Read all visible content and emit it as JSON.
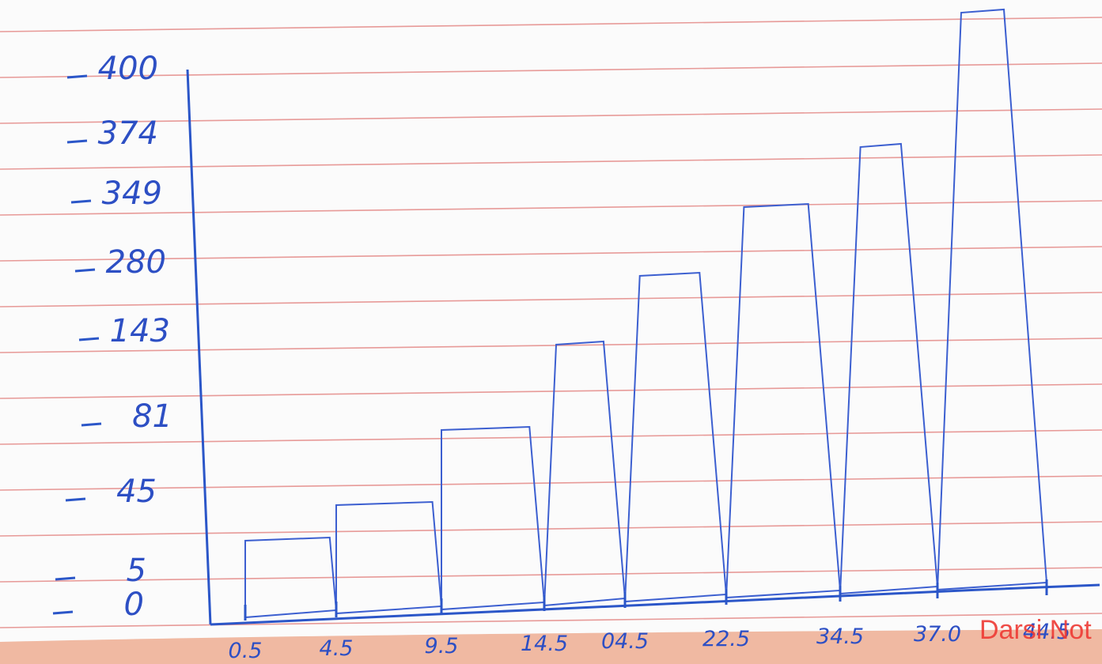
{
  "chart_data": {
    "type": "bar",
    "title": "",
    "xlabel": "",
    "ylabel": "",
    "y_tick_labels": [
      "0",
      "5",
      "45",
      "81",
      "143",
      "280",
      "349",
      "374",
      "400"
    ],
    "x_tick_labels": [
      "0.5",
      "4.5",
      "9.5",
      "14.5",
      "04.5",
      "22.5",
      "34.5",
      "37.0",
      "44.5"
    ],
    "bars": [
      {
        "from": "0.5",
        "to": "4.5",
        "value": 5
      },
      {
        "from": "4.5",
        "to": "9.5",
        "value": 45
      },
      {
        "from": "9.5",
        "to": "14.5",
        "value": 81
      },
      {
        "from": "14.5",
        "to": "04.5",
        "value": 143
      },
      {
        "from": "04.5",
        "to": "22.5",
        "value": 280
      },
      {
        "from": "22.5",
        "to": "34.5",
        "value": 349
      },
      {
        "from": "34.5",
        "to": "37.0",
        "value": 374
      },
      {
        "from": "37.0",
        "to": "44.5",
        "value": 400
      }
    ],
    "grid": false,
    "legend": "none",
    "colors": {
      "ink": "#2d4fc4",
      "paper_lines": "#e79a98",
      "paper": "#fbfbfb"
    }
  },
  "watermark": "Darsi Not"
}
